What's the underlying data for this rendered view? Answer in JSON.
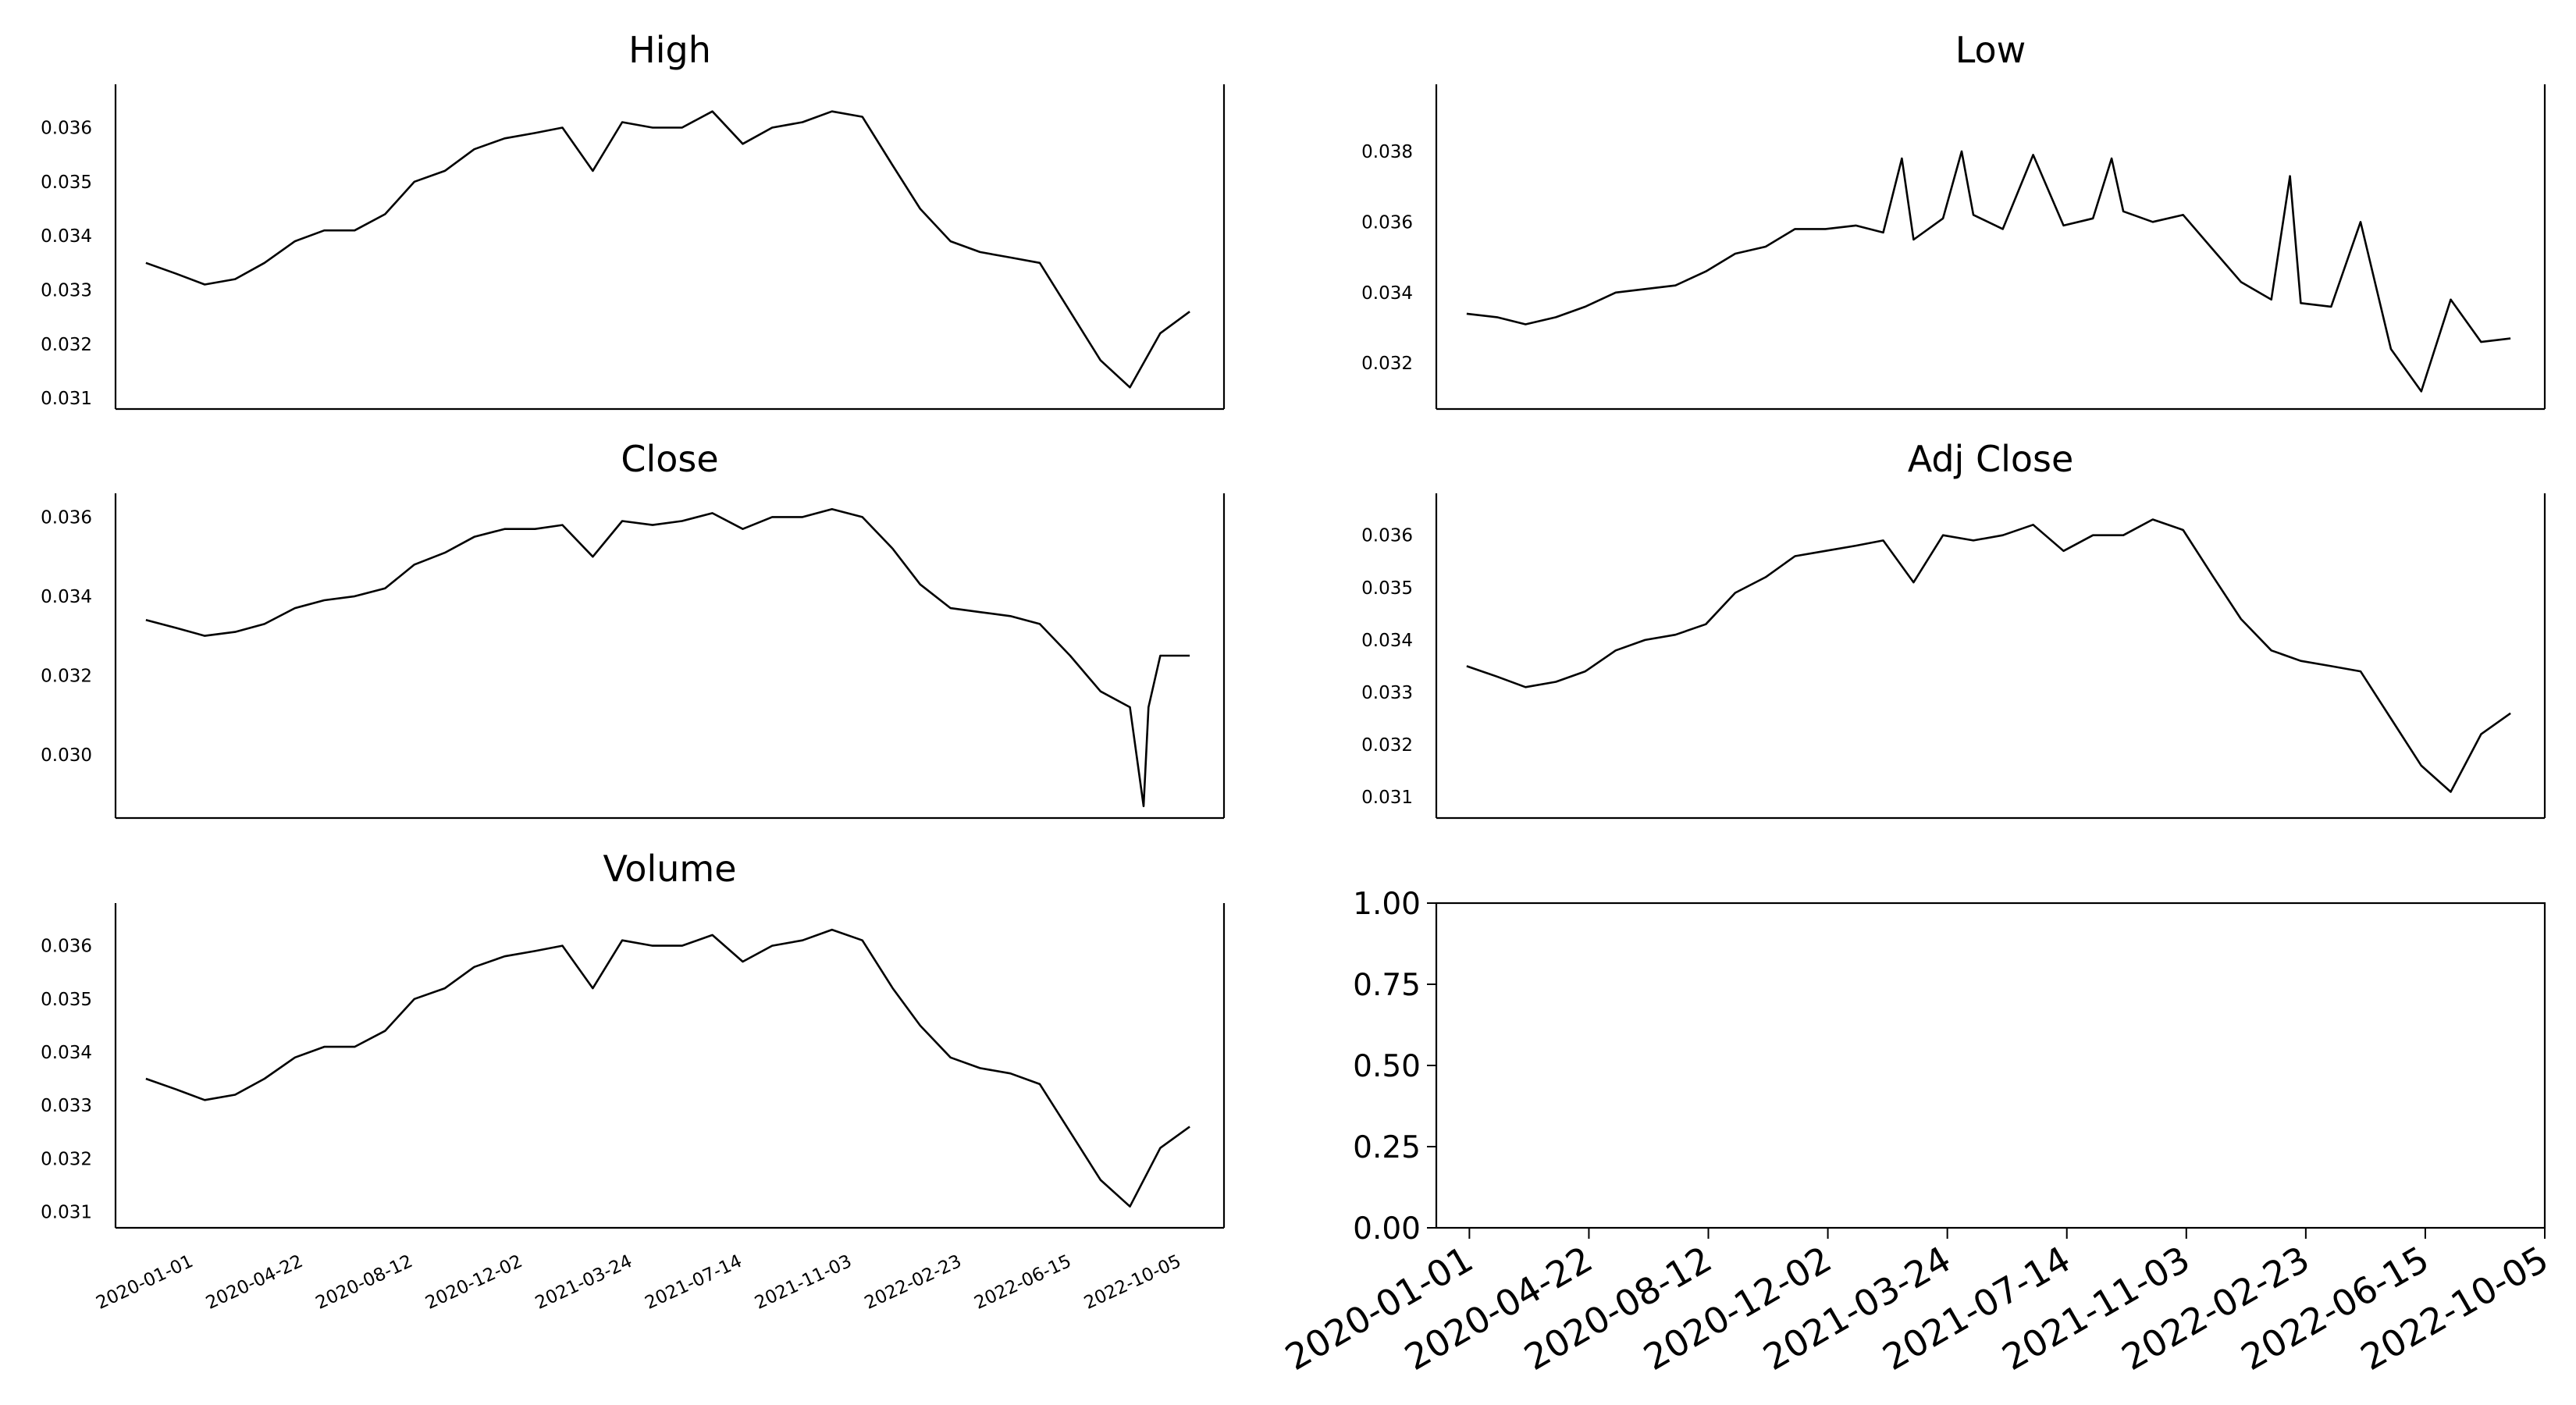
{
  "chart_data": [
    {
      "type": "line",
      "title": "High",
      "ylabel": "",
      "xlabel": "",
      "xlim": [
        "2019-12-01",
        "2023-01-05"
      ],
      "ylim": [
        0.0308,
        0.0368
      ],
      "yticks": [
        "0.031",
        "0.032",
        "0.033",
        "0.034",
        "0.035",
        "0.036"
      ],
      "x": [
        "2020-01-01",
        "2020-02-01",
        "2020-03-01",
        "2020-04-01",
        "2020-05-01",
        "2020-06-01",
        "2020-07-01",
        "2020-08-01",
        "2020-09-01",
        "2020-10-01",
        "2020-11-01",
        "2020-12-01",
        "2021-01-01",
        "2021-02-01",
        "2021-03-01",
        "2021-04-01",
        "2021-05-01",
        "2021-06-01",
        "2021-07-01",
        "2021-08-01",
        "2021-09-01",
        "2021-10-01",
        "2021-11-01",
        "2021-12-01",
        "2022-01-01",
        "2022-02-01",
        "2022-03-01",
        "2022-04-01",
        "2022-05-01",
        "2022-06-01",
        "2022-07-01",
        "2022-08-01",
        "2022-09-01",
        "2022-10-01",
        "2022-11-01",
        "2022-12-01"
      ],
      "values": [
        0.0335,
        0.0333,
        0.0331,
        0.0332,
        0.0335,
        0.0339,
        0.0341,
        0.0341,
        0.0344,
        0.035,
        0.0352,
        0.0356,
        0.0358,
        0.0359,
        0.036,
        0.0352,
        0.0361,
        0.036,
        0.036,
        0.0363,
        0.0357,
        0.036,
        0.0361,
        0.0363,
        0.0362,
        0.0353,
        0.0345,
        0.0339,
        0.0337,
        0.0336,
        0.0335,
        0.0326,
        0.0317,
        0.0312,
        0.0322,
        0.0326
      ]
    },
    {
      "type": "line",
      "title": "Low",
      "ylabel": "",
      "xlabel": "",
      "xlim": [
        "2019-12-01",
        "2023-01-05"
      ],
      "ylim": [
        0.0307,
        0.0399
      ],
      "yticks": [
        "0.032",
        "0.034",
        "0.036",
        "0.038"
      ],
      "x": [
        "2020-01-01",
        "2020-02-01",
        "2020-03-01",
        "2020-04-01",
        "2020-05-01",
        "2020-06-01",
        "2020-07-01",
        "2020-08-01",
        "2020-09-01",
        "2020-10-01",
        "2020-11-01",
        "2020-12-01",
        "2021-01-01",
        "2021-02-01",
        "2021-03-01",
        "2021-03-20",
        "2021-04-01",
        "2021-05-01",
        "2021-05-20",
        "2021-06-01",
        "2021-07-01",
        "2021-08-01",
        "2021-09-01",
        "2021-10-01",
        "2021-10-20",
        "2021-11-01",
        "2021-12-01",
        "2022-01-01",
        "2022-02-01",
        "2022-03-01",
        "2022-04-01",
        "2022-04-20",
        "2022-05-01",
        "2022-06-01",
        "2022-07-01",
        "2022-08-01",
        "2022-09-01",
        "2022-10-01",
        "2022-11-01",
        "2022-12-01"
      ],
      "values": [
        0.0334,
        0.0333,
        0.0331,
        0.0333,
        0.0336,
        0.034,
        0.0341,
        0.0342,
        0.0346,
        0.0351,
        0.0353,
        0.0358,
        0.0358,
        0.0359,
        0.0357,
        0.0378,
        0.0355,
        0.0361,
        0.038,
        0.0362,
        0.0358,
        0.0379,
        0.0359,
        0.0361,
        0.0378,
        0.0363,
        0.036,
        0.0362,
        0.0352,
        0.0343,
        0.0338,
        0.0373,
        0.0337,
        0.0336,
        0.036,
        0.0324,
        0.0312,
        0.0338,
        0.0326,
        0.0327
      ]
    },
    {
      "type": "line",
      "title": "Close",
      "ylabel": "",
      "xlabel": "",
      "xlim": [
        "2019-12-01",
        "2023-01-05"
      ],
      "ylim": [
        0.0284,
        0.0366
      ],
      "yticks": [
        "0.030",
        "0.032",
        "0.034",
        "0.036"
      ],
      "x": [
        "2020-01-01",
        "2020-02-01",
        "2020-03-01",
        "2020-04-01",
        "2020-05-01",
        "2020-06-01",
        "2020-07-01",
        "2020-08-01",
        "2020-09-01",
        "2020-10-01",
        "2020-11-01",
        "2020-12-01",
        "2021-01-01",
        "2021-02-01",
        "2021-03-01",
        "2021-04-01",
        "2021-05-01",
        "2021-06-01",
        "2021-07-01",
        "2021-08-01",
        "2021-09-01",
        "2021-10-01",
        "2021-11-01",
        "2021-12-01",
        "2022-01-01",
        "2022-02-01",
        "2022-03-01",
        "2022-04-01",
        "2022-05-01",
        "2022-06-01",
        "2022-07-01",
        "2022-08-01",
        "2022-09-01",
        "2022-10-01",
        "2022-10-15",
        "2022-10-20",
        "2022-11-01",
        "2022-12-01"
      ],
      "values": [
        0.0334,
        0.0332,
        0.033,
        0.0331,
        0.0333,
        0.0337,
        0.0339,
        0.034,
        0.0342,
        0.0348,
        0.0351,
        0.0355,
        0.0357,
        0.0357,
        0.0358,
        0.035,
        0.0359,
        0.0358,
        0.0359,
        0.0361,
        0.0357,
        0.036,
        0.036,
        0.0362,
        0.036,
        0.0352,
        0.0343,
        0.0337,
        0.0336,
        0.0335,
        0.0333,
        0.0325,
        0.0316,
        0.0312,
        0.0287,
        0.0312,
        0.0325,
        0.0325
      ]
    },
    {
      "type": "line",
      "title": "Adj Close",
      "ylabel": "",
      "xlabel": "",
      "xlim": [
        "2019-12-01",
        "2023-01-05"
      ],
      "ylim": [
        0.0306,
        0.0368
      ],
      "yticks": [
        "0.031",
        "0.032",
        "0.033",
        "0.034",
        "0.035",
        "0.036"
      ],
      "x": [
        "2020-01-01",
        "2020-02-01",
        "2020-03-01",
        "2020-04-01",
        "2020-05-01",
        "2020-06-01",
        "2020-07-01",
        "2020-08-01",
        "2020-09-01",
        "2020-10-01",
        "2020-11-01",
        "2020-12-01",
        "2021-01-01",
        "2021-02-01",
        "2021-03-01",
        "2021-04-01",
        "2021-05-01",
        "2021-06-01",
        "2021-07-01",
        "2021-08-01",
        "2021-09-01",
        "2021-10-01",
        "2021-11-01",
        "2021-12-01",
        "2022-01-01",
        "2022-02-01",
        "2022-03-01",
        "2022-04-01",
        "2022-05-01",
        "2022-06-01",
        "2022-07-01",
        "2022-08-01",
        "2022-09-01",
        "2022-10-01",
        "2022-11-01",
        "2022-12-01"
      ],
      "values": [
        0.0335,
        0.0333,
        0.0331,
        0.0332,
        0.0334,
        0.0338,
        0.034,
        0.0341,
        0.0343,
        0.0349,
        0.0352,
        0.0356,
        0.0357,
        0.0358,
        0.0359,
        0.0351,
        0.036,
        0.0359,
        0.036,
        0.0362,
        0.0357,
        0.036,
        0.036,
        0.0363,
        0.0361,
        0.0352,
        0.0344,
        0.0338,
        0.0336,
        0.0335,
        0.0334,
        0.0325,
        0.0316,
        0.0311,
        0.0322,
        0.0326
      ]
    },
    {
      "type": "line",
      "title": "Volume",
      "ylabel": "",
      "xlabel": "",
      "xlim": [
        "2019-12-01",
        "2023-01-05"
      ],
      "ylim": [
        0.0307,
        0.0368
      ],
      "yticks": [
        "0.031",
        "0.032",
        "0.033",
        "0.034",
        "0.035",
        "0.036"
      ],
      "xticks": [
        "2020-01-01",
        "2020-04-22",
        "2020-08-12",
        "2020-12-02",
        "2021-03-24",
        "2021-07-14",
        "2021-11-03",
        "2022-02-23",
        "2022-06-15",
        "2022-10-05"
      ],
      "x": [
        "2020-01-01",
        "2020-02-01",
        "2020-03-01",
        "2020-04-01",
        "2020-05-01",
        "2020-06-01",
        "2020-07-01",
        "2020-08-01",
        "2020-09-01",
        "2020-10-01",
        "2020-11-01",
        "2020-12-01",
        "2021-01-01",
        "2021-02-01",
        "2021-03-01",
        "2021-04-01",
        "2021-05-01",
        "2021-06-01",
        "2021-07-01",
        "2021-08-01",
        "2021-09-01",
        "2021-10-01",
        "2021-11-01",
        "2021-12-01",
        "2022-01-01",
        "2022-02-01",
        "2022-03-01",
        "2022-04-01",
        "2022-05-01",
        "2022-06-01",
        "2022-07-01",
        "2022-08-01",
        "2022-09-01",
        "2022-10-01",
        "2022-11-01",
        "2022-12-01"
      ],
      "values": [
        0.0335,
        0.0333,
        0.0331,
        0.0332,
        0.0335,
        0.0339,
        0.0341,
        0.0341,
        0.0344,
        0.035,
        0.0352,
        0.0356,
        0.0358,
        0.0359,
        0.036,
        0.0352,
        0.0361,
        0.036,
        0.036,
        0.0362,
        0.0357,
        0.036,
        0.0361,
        0.0363,
        0.0361,
        0.0352,
        0.0345,
        0.0339,
        0.0337,
        0.0336,
        0.0334,
        0.0325,
        0.0316,
        0.0311,
        0.0322,
        0.0326
      ]
    },
    {
      "type": "line",
      "title": "",
      "ylabel": "",
      "xlabel": "",
      "xlim": [
        "2019-12-01",
        "2022-10-05"
      ],
      "ylim": [
        0,
        1
      ],
      "yticks": [
        "0.00",
        "0.25",
        "0.50",
        "0.75",
        "1.00"
      ],
      "xticks": [
        "2020-01-01",
        "2020-04-22",
        "2020-08-12",
        "2020-12-02",
        "2021-03-24",
        "2021-07-14",
        "2021-11-03",
        "2022-02-23",
        "2022-06-15",
        "2022-10-05"
      ],
      "x": [],
      "values": []
    }
  ]
}
